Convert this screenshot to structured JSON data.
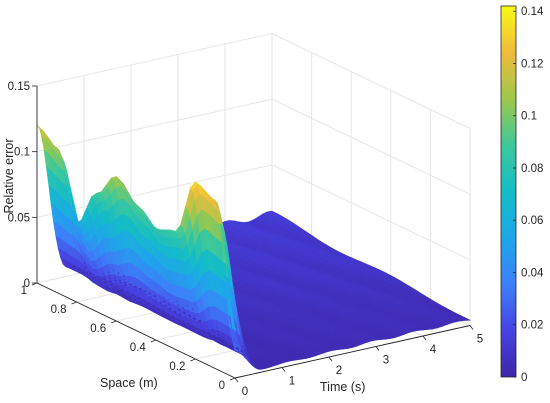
{
  "chart_data": {
    "type": "surface",
    "title": "",
    "xlabel": "Time (s)",
    "ylabel": "Space (m)",
    "zlabel": "Relative error",
    "xlim": [
      0,
      5
    ],
    "ylim": [
      0,
      1
    ],
    "zlim": [
      0,
      0.15
    ],
    "x_ticks": [
      "0",
      "1",
      "2",
      "3",
      "4",
      "5"
    ],
    "y_ticks": [
      "0",
      "0.2",
      "0.4",
      "0.6",
      "0.8",
      "1"
    ],
    "z_ticks": [
      "0",
      "0.05",
      "0.1",
      "0.15"
    ],
    "grid": true,
    "colormap": "parula",
    "colorbar": {
      "range": [
        0,
        0.142
      ],
      "ticks": [
        "0",
        "0.02",
        "0.04",
        "0.06",
        "0.08",
        "0.1",
        "0.12",
        "0.14"
      ]
    },
    "surface_profile": {
      "description_free_values": true,
      "space": [
        0.0,
        0.1,
        0.2,
        0.3,
        0.4,
        0.5,
        0.6,
        0.7,
        0.8,
        0.9,
        1.0
      ],
      "relative_error_at_time_0": [
        0.02,
        0.128,
        0.135,
        0.09,
        0.085,
        0.096,
        0.11,
        0.09,
        0.06,
        0.11,
        0.12
      ],
      "relative_error_at_time_5_max": 0.015
    }
  },
  "colors": {
    "axis": "#262626",
    "grid": "#e6e6e6"
  }
}
